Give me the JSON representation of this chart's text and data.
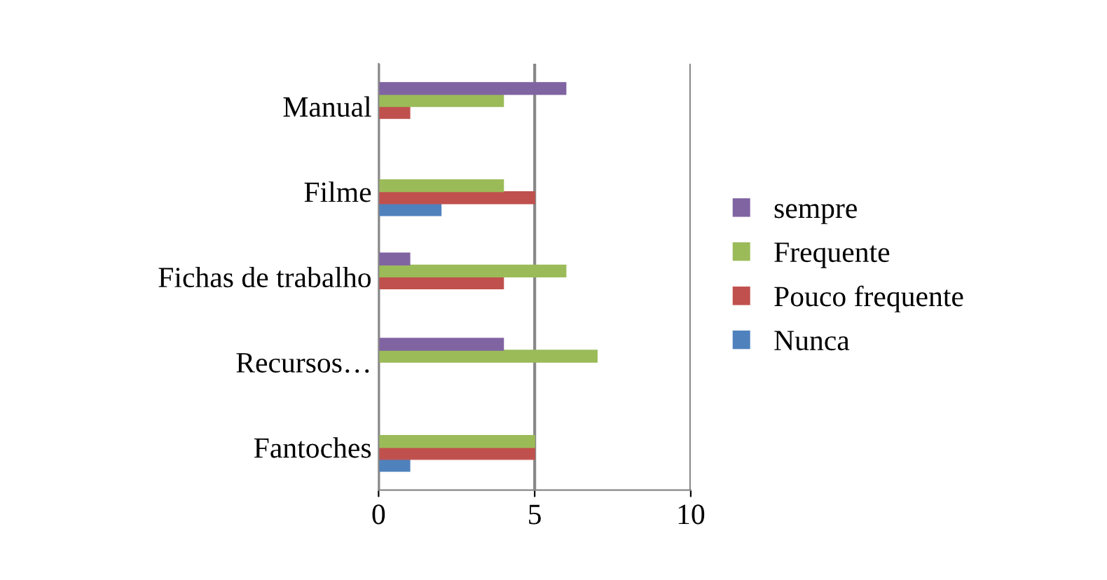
{
  "chart_data": {
    "type": "bar",
    "orientation": "horizontal",
    "categories": [
      "Manual",
      "Filme",
      "Fichas de trabalho",
      "Recursos…",
      "Fantoches"
    ],
    "series": [
      {
        "name": "Nunca",
        "color": "#4f81bd",
        "values": [
          0,
          2,
          0,
          0,
          1
        ]
      },
      {
        "name": "Pouco frequente",
        "color": "#c0504d",
        "values": [
          1,
          5,
          4,
          0,
          5
        ]
      },
      {
        "name": "Frequente",
        "color": "#9bbb59",
        "values": [
          4,
          4,
          6,
          7,
          5
        ]
      },
      {
        "name": "sempre",
        "color": "#8064a2",
        "values": [
          6,
          0,
          1,
          4,
          0
        ]
      }
    ],
    "xlim": [
      0,
      10
    ],
    "xticks": [
      0,
      5,
      10
    ],
    "grid": "x",
    "legend": "right"
  }
}
